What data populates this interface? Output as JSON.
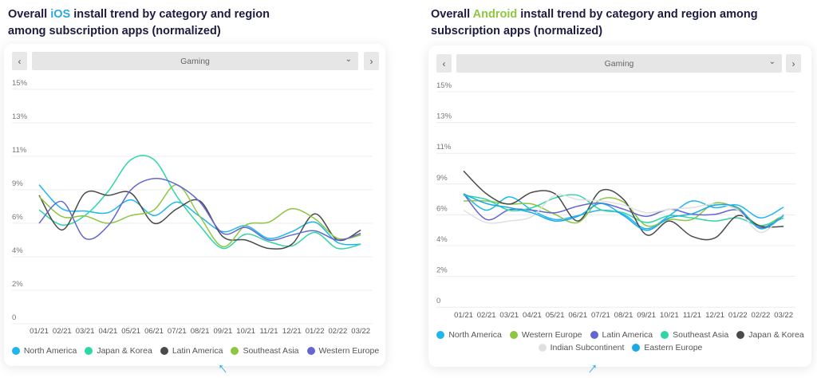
{
  "ios_panel": {
    "title_prefix": "Overall ",
    "title_highlight": "iOS",
    "title_suffix": " install trend by category and region among subscription apps (normalized)",
    "highlight_color": "#2aa8e0",
    "prev_label": "‹",
    "next_label": "›",
    "category_select": "Gaming",
    "chevron": "⌄"
  },
  "android_panel": {
    "title_prefix": "Overall ",
    "title_highlight": "Android",
    "title_suffix": " install trend by category and region among subscription apps (normalized)",
    "highlight_color": "#8dc63f",
    "prev_label": "‹",
    "next_label": "›",
    "category_select": "Gaming",
    "chevron": "⌄"
  },
  "chart_data": [
    {
      "type": "line",
      "title": "",
      "xlabel": "",
      "ylabel": "",
      "grid": true,
      "legend_position": "bottom",
      "y_ticks": [
        "0",
        "2%",
        "4%",
        "6%",
        "9%",
        "11%",
        "13%",
        "15%"
      ],
      "y_tick_values": [
        0,
        2,
        4,
        6,
        9,
        11,
        13,
        15
      ],
      "x": [
        "01/21",
        "02/21",
        "03/21",
        "04/21",
        "05/21",
        "06/21",
        "07/21",
        "08/21",
        "09/21",
        "10/21",
        "11/21",
        "12/21",
        "01/22",
        "02/22",
        "03/22"
      ],
      "series": [
        {
          "name": "North America",
          "color": "#1fb6f0",
          "values": [
            9.3,
            7.3,
            7.1,
            6.95,
            8.1,
            6.7,
            7.9,
            6.6,
            5.5,
            5.85,
            5.1,
            5.5,
            6.1,
            4.85,
            4.75
          ]
        },
        {
          "name": "Japan & Korea",
          "color": "#2ed6a6",
          "values": [
            7.2,
            5.9,
            6.7,
            8.85,
            10.8,
            10.8,
            8.4,
            5.85,
            4.5,
            5.35,
            4.9,
            4.65,
            5.45,
            4.5,
            4.75
          ]
        },
        {
          "name": "Latin America",
          "color": "#4a4a4a",
          "values": [
            8.5,
            5.6,
            8.7,
            8.5,
            8.7,
            6.0,
            7.3,
            8.0,
            5.2,
            5.0,
            4.5,
            4.75,
            6.85,
            5.0,
            5.6
          ]
        },
        {
          "name": "Southeast Asia",
          "color": "#8dc63f",
          "values": [
            8.4,
            6.6,
            6.65,
            6.0,
            6.7,
            7.2,
            9.3,
            6.6,
            4.6,
            5.9,
            6.1,
            7.3,
            6.4,
            5.1,
            5.3
          ]
        },
        {
          "name": "Western Europe",
          "color": "#6366d1",
          "values": [
            6.0,
            7.95,
            5.1,
            5.85,
            9.0,
            9.67,
            9.3,
            7.9,
            5.4,
            5.75,
            5.0,
            5.3,
            5.55,
            5.0,
            5.4
          ]
        }
      ]
    },
    {
      "type": "line",
      "title": "",
      "xlabel": "",
      "ylabel": "",
      "grid": true,
      "legend_position": "bottom",
      "y_ticks": [
        "0",
        "2%",
        "4%",
        "6%",
        "9%",
        "11%",
        "13%",
        "15%"
      ],
      "y_tick_values": [
        0,
        2,
        4,
        6,
        9,
        11,
        13,
        15
      ],
      "x": [
        "01/21",
        "02/21",
        "03/21",
        "04/21",
        "05/21",
        "06/21",
        "07/21",
        "08/21",
        "09/21",
        "10/21",
        "11/21",
        "12/21",
        "01/22",
        "02/22",
        "03/22"
      ],
      "series": [
        {
          "name": "North America",
          "color": "#1fb6f0",
          "values": [
            8.05,
            6.45,
            7.75,
            6.45,
            5.7,
            5.95,
            6.45,
            6.05,
            5.1,
            5.95,
            7.35,
            6.7,
            6.95,
            5.8,
            6.75
          ]
        },
        {
          "name": "Western Europe",
          "color": "#8dc63f",
          "values": [
            7.35,
            7.35,
            7.05,
            7.05,
            6.05,
            5.5,
            7.5,
            7.25,
            5.3,
            5.7,
            5.7,
            7.15,
            6.55,
            5.3,
            6.0
          ]
        },
        {
          "name": "Latin America",
          "color": "#6366d1",
          "values": [
            8.05,
            5.7,
            6.5,
            6.45,
            6.2,
            6.85,
            7.15,
            6.55,
            5.9,
            6.55,
            6.05,
            6.05,
            6.45,
            5.15,
            6.0
          ]
        },
        {
          "name": "Southeast Asia",
          "color": "#2ed6a6",
          "values": [
            7.9,
            7.5,
            6.45,
            6.7,
            7.65,
            7.9,
            6.5,
            6.2,
            5.5,
            5.95,
            5.8,
            5.6,
            5.8,
            5.3,
            5.8
          ]
        },
        {
          "name": "Japan & Korea",
          "color": "#4a4a4a",
          "values": [
            9.85,
            8.05,
            7.05,
            8.2,
            8.05,
            5.6,
            8.35,
            7.5,
            4.7,
            5.6,
            4.6,
            4.5,
            5.95,
            5.25,
            5.25
          ]
        },
        {
          "name": "Indian Subcontinent",
          "color": "#e0e0e0",
          "values": [
            6.45,
            5.5,
            5.6,
            5.9,
            7.9,
            7.5,
            7.35,
            6.95,
            6.2,
            6.55,
            6.7,
            7.05,
            6.45,
            4.85,
            6.1
          ]
        },
        {
          "name": "Eastern Europe",
          "color": "#1aa9e8",
          "values": [
            8.05,
            7.1,
            6.7,
            6.2,
            5.6,
            5.9,
            7.1,
            5.95,
            5.0,
            5.8,
            6.1,
            6.95,
            6.7,
            5.1,
            5.95
          ]
        }
      ]
    }
  ]
}
